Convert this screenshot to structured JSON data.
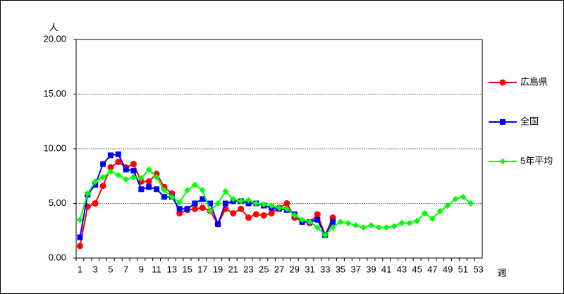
{
  "chart_data": {
    "type": "line",
    "y_axis_label": "人",
    "x_axis_label": "週",
    "categories": [
      "1",
      null,
      "3",
      null,
      "5",
      null,
      "7",
      null,
      "9",
      null,
      "11",
      null,
      "13",
      null,
      "15",
      null,
      "17",
      null,
      "19",
      null,
      "21",
      null,
      "23",
      null,
      "25",
      null,
      "27",
      null,
      "29",
      null,
      "31",
      null,
      "33",
      null,
      "35",
      null,
      "37",
      null,
      "39",
      null,
      "41",
      null,
      "43",
      null,
      "45",
      null,
      "47",
      null,
      "49",
      null,
      "51",
      null,
      "53"
    ],
    "ylim": [
      0,
      20
    ],
    "yticks": [
      {
        "value": 0,
        "label": "0.00"
      },
      {
        "value": 5,
        "label": "5.00"
      },
      {
        "value": 10,
        "label": "10.00"
      },
      {
        "value": 15,
        "label": "15.00"
      },
      {
        "value": 20,
        "label": "20.00"
      }
    ],
    "grid": true,
    "legend": "right",
    "series": [
      {
        "name": "広島県",
        "color": "#ff0000",
        "marker": "circle",
        "values": [
          1.1,
          4.7,
          5.0,
          6.6,
          8.3,
          8.8,
          8.3,
          8.6,
          7.0,
          7.0,
          7.7,
          6.5,
          5.9,
          4.1,
          4.4,
          4.5,
          4.6,
          4.3,
          3.1,
          4.5,
          4.1,
          4.5,
          3.7,
          4.0,
          3.9,
          4.1,
          4.6,
          5.0,
          3.7,
          3.4,
          3.2,
          4.0,
          2.1,
          3.7,
          null,
          null,
          null,
          null,
          null,
          null,
          null,
          null,
          null,
          null,
          null,
          null,
          null,
          null,
          null,
          null,
          null,
          null,
          null
        ]
      },
      {
        "name": "全国",
        "color": "#0000ff",
        "marker": "square",
        "values": [
          1.9,
          5.8,
          6.7,
          8.6,
          9.4,
          9.5,
          8.1,
          8.0,
          6.3,
          6.5,
          6.3,
          5.6,
          5.6,
          4.5,
          4.5,
          5.0,
          5.4,
          5.0,
          3.1,
          5.0,
          5.2,
          5.2,
          5.0,
          5.0,
          4.8,
          4.6,
          4.5,
          4.4,
          4.0,
          3.3,
          3.3,
          3.5,
          2.1,
          3.3,
          null,
          null,
          null,
          null,
          null,
          null,
          null,
          null,
          null,
          null,
          null,
          null,
          null,
          null,
          null,
          null,
          null,
          null,
          null
        ]
      },
      {
        "name": "5年平均",
        "color": "#00ff00",
        "marker": "diamond",
        "values": [
          3.5,
          5.9,
          7.0,
          7.4,
          7.9,
          7.6,
          7.2,
          7.4,
          7.3,
          8.1,
          7.4,
          6.2,
          5.6,
          5.1,
          6.2,
          6.7,
          6.2,
          4.3,
          5.0,
          6.1,
          5.4,
          5.2,
          5.3,
          5.0,
          4.9,
          4.8,
          4.6,
          4.5,
          3.9,
          3.5,
          3.3,
          2.8,
          2.1,
          2.8,
          3.3,
          3.2,
          3.0,
          2.8,
          3.0,
          2.8,
          2.8,
          2.9,
          3.2,
          3.2,
          3.4,
          4.1,
          3.6,
          4.3,
          4.8,
          5.4,
          5.6,
          5.0,
          null
        ]
      }
    ]
  }
}
